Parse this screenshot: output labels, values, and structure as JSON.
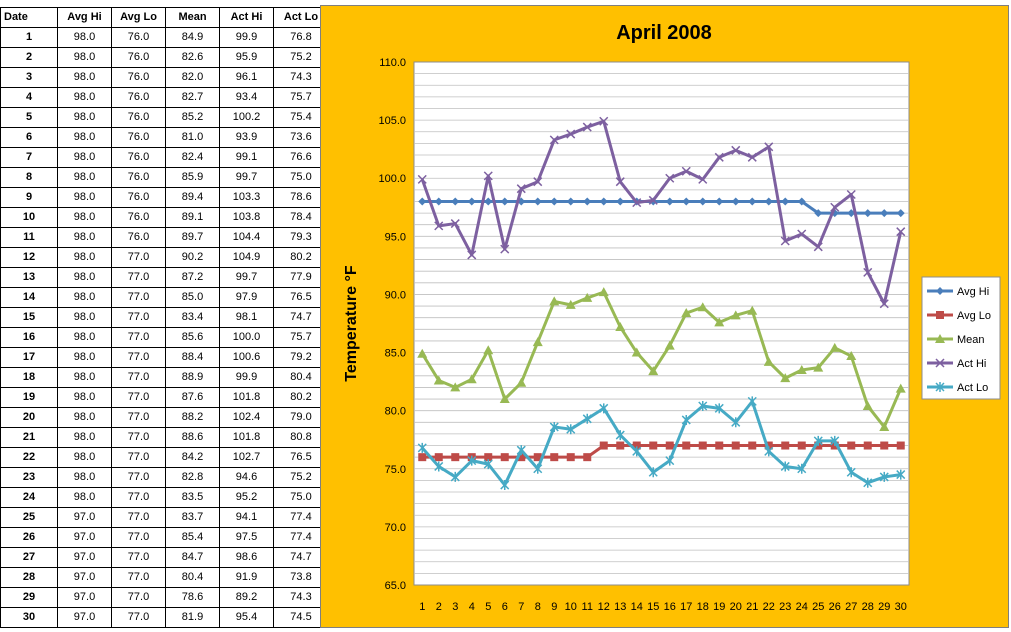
{
  "table": {
    "headers": [
      "Date",
      "Avg Hi",
      "Avg Lo",
      "Mean",
      "Act Hi",
      "Act Lo"
    ],
    "rows": [
      [
        "1",
        "98.0",
        "76.0",
        "84.9",
        "99.9",
        "76.8"
      ],
      [
        "2",
        "98.0",
        "76.0",
        "82.6",
        "95.9",
        "75.2"
      ],
      [
        "3",
        "98.0",
        "76.0",
        "82.0",
        "96.1",
        "74.3"
      ],
      [
        "4",
        "98.0",
        "76.0",
        "82.7",
        "93.4",
        "75.7"
      ],
      [
        "5",
        "98.0",
        "76.0",
        "85.2",
        "100.2",
        "75.4"
      ],
      [
        "6",
        "98.0",
        "76.0",
        "81.0",
        "93.9",
        "73.6"
      ],
      [
        "7",
        "98.0",
        "76.0",
        "82.4",
        "99.1",
        "76.6"
      ],
      [
        "8",
        "98.0",
        "76.0",
        "85.9",
        "99.7",
        "75.0"
      ],
      [
        "9",
        "98.0",
        "76.0",
        "89.4",
        "103.3",
        "78.6"
      ],
      [
        "10",
        "98.0",
        "76.0",
        "89.1",
        "103.8",
        "78.4"
      ],
      [
        "11",
        "98.0",
        "76.0",
        "89.7",
        "104.4",
        "79.3"
      ],
      [
        "12",
        "98.0",
        "77.0",
        "90.2",
        "104.9",
        "80.2"
      ],
      [
        "13",
        "98.0",
        "77.0",
        "87.2",
        "99.7",
        "77.9"
      ],
      [
        "14",
        "98.0",
        "77.0",
        "85.0",
        "97.9",
        "76.5"
      ],
      [
        "15",
        "98.0",
        "77.0",
        "83.4",
        "98.1",
        "74.7"
      ],
      [
        "16",
        "98.0",
        "77.0",
        "85.6",
        "100.0",
        "75.7"
      ],
      [
        "17",
        "98.0",
        "77.0",
        "88.4",
        "100.6",
        "79.2"
      ],
      [
        "18",
        "98.0",
        "77.0",
        "88.9",
        "99.9",
        "80.4"
      ],
      [
        "19",
        "98.0",
        "77.0",
        "87.6",
        "101.8",
        "80.2"
      ],
      [
        "20",
        "98.0",
        "77.0",
        "88.2",
        "102.4",
        "79.0"
      ],
      [
        "21",
        "98.0",
        "77.0",
        "88.6",
        "101.8",
        "80.8"
      ],
      [
        "22",
        "98.0",
        "77.0",
        "84.2",
        "102.7",
        "76.5"
      ],
      [
        "23",
        "98.0",
        "77.0",
        "82.8",
        "94.6",
        "75.2"
      ],
      [
        "24",
        "98.0",
        "77.0",
        "83.5",
        "95.2",
        "75.0"
      ],
      [
        "25",
        "97.0",
        "77.0",
        "83.7",
        "94.1",
        "77.4"
      ],
      [
        "26",
        "97.0",
        "77.0",
        "85.4",
        "97.5",
        "77.4"
      ],
      [
        "27",
        "97.0",
        "77.0",
        "84.7",
        "98.6",
        "74.7"
      ],
      [
        "28",
        "97.0",
        "77.0",
        "80.4",
        "91.9",
        "73.8"
      ],
      [
        "29",
        "97.0",
        "77.0",
        "78.6",
        "89.2",
        "74.3"
      ],
      [
        "30",
        "97.0",
        "77.0",
        "81.9",
        "95.4",
        "74.5"
      ]
    ]
  },
  "chart_data": {
    "type": "line",
    "title": "April 2008",
    "xlabel": "",
    "ylabel": "Temperature °F",
    "ylim": [
      65,
      110
    ],
    "yticks": [
      "65.0",
      "70.0",
      "75.0",
      "80.0",
      "85.0",
      "90.0",
      "95.0",
      "100.0",
      "105.0",
      "110.0"
    ],
    "x": [
      1,
      2,
      3,
      4,
      5,
      6,
      7,
      8,
      9,
      10,
      11,
      12,
      13,
      14,
      15,
      16,
      17,
      18,
      19,
      20,
      21,
      22,
      23,
      24,
      25,
      26,
      27,
      28,
      29,
      30
    ],
    "grid": "horizontal",
    "legend_position": "right",
    "series": [
      {
        "name": "Avg Hi",
        "color": "#4A7EBB",
        "marker": "diamond",
        "values": [
          98,
          98,
          98,
          98,
          98,
          98,
          98,
          98,
          98,
          98,
          98,
          98,
          98,
          98,
          98,
          98,
          98,
          98,
          98,
          98,
          98,
          98,
          98,
          98,
          97,
          97,
          97,
          97,
          97,
          97
        ]
      },
      {
        "name": "Avg Lo",
        "color": "#BE4B48",
        "marker": "square",
        "values": [
          76,
          76,
          76,
          76,
          76,
          76,
          76,
          76,
          76,
          76,
          76,
          77,
          77,
          77,
          77,
          77,
          77,
          77,
          77,
          77,
          77,
          77,
          77,
          77,
          77,
          77,
          77,
          77,
          77,
          77
        ]
      },
      {
        "name": "Mean",
        "color": "#98B954",
        "marker": "triangle",
        "values": [
          84.9,
          82.6,
          82.0,
          82.7,
          85.2,
          81.0,
          82.4,
          85.9,
          89.4,
          89.1,
          89.7,
          90.2,
          87.2,
          85.0,
          83.4,
          85.6,
          88.4,
          88.9,
          87.6,
          88.2,
          88.6,
          84.2,
          82.8,
          83.5,
          83.7,
          85.4,
          84.7,
          80.4,
          78.6,
          81.9
        ]
      },
      {
        "name": "Act Hi",
        "color": "#7D60A0",
        "marker": "x",
        "values": [
          99.9,
          95.9,
          96.1,
          93.4,
          100.2,
          93.9,
          99.1,
          99.7,
          103.3,
          103.8,
          104.4,
          104.9,
          99.7,
          97.9,
          98.1,
          100.0,
          100.6,
          99.9,
          101.8,
          102.4,
          101.8,
          102.7,
          94.6,
          95.2,
          94.1,
          97.5,
          98.6,
          91.9,
          89.2,
          95.4
        ]
      },
      {
        "name": "Act Lo",
        "color": "#46AAC5",
        "marker": "star",
        "values": [
          76.8,
          75.2,
          74.3,
          75.7,
          75.4,
          73.6,
          76.6,
          75.0,
          78.6,
          78.4,
          79.3,
          80.2,
          77.9,
          76.5,
          74.7,
          75.7,
          79.2,
          80.4,
          80.2,
          79.0,
          80.8,
          76.5,
          75.2,
          75.0,
          77.4,
          77.4,
          74.7,
          73.8,
          74.3,
          74.5
        ]
      }
    ]
  }
}
